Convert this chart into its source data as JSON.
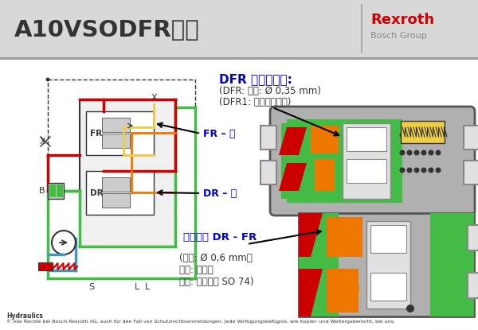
{
  "title": "A10VSODFR油泵",
  "bg_color": "#d8d8d8",
  "white_bg": "#ffffff",
  "brand_name": "Rexroth",
  "brand_sub": "Bosch Group",
  "brand_color": "#cc0000",
  "dfr_title": "DFR 泄压阻尼孔:",
  "dfr_line1": "(DFR: 标准: Ø 0,35 mm)",
  "dfr_line2": "(DFR1: 无阻尼，关死)",
  "fr_label": "FR – 阀",
  "dr_label": "DR – 阀",
  "damping_title": "减震阻尼 DR - FR",
  "damping_line1": "(标准: Ø 0,6 mm，",
  "damping_line2": "轴向: 无阻尼",
  "damping_line3": "横向: 阻尼作用 SO 74)",
  "footer1": "Hydraulics",
  "footer2": "© Alle Rechte bei Bosch Rexroth AG, auch für den Fall von Schutzrechtsanmeldungen. Jede Verfügungsbefügnis, wie Kopier- und Weitergaberecht, bei uns.",
  "colors": {
    "red": "#cc0000",
    "green": "#44bb44",
    "orange": "#ee7700",
    "yellow": "#ddbb00",
    "yellow2": "#eecc44",
    "blue_label": "#0000cc",
    "gray": "#888888",
    "mid_gray": "#aaaaaa",
    "dark_gray": "#333333",
    "light_gray": "#cccccc",
    "lighter_gray": "#e0e0e0",
    "body_gray": "#b0b0b0",
    "black": "#000000",
    "white": "#ffffff",
    "cyan_blue": "#4499bb"
  }
}
